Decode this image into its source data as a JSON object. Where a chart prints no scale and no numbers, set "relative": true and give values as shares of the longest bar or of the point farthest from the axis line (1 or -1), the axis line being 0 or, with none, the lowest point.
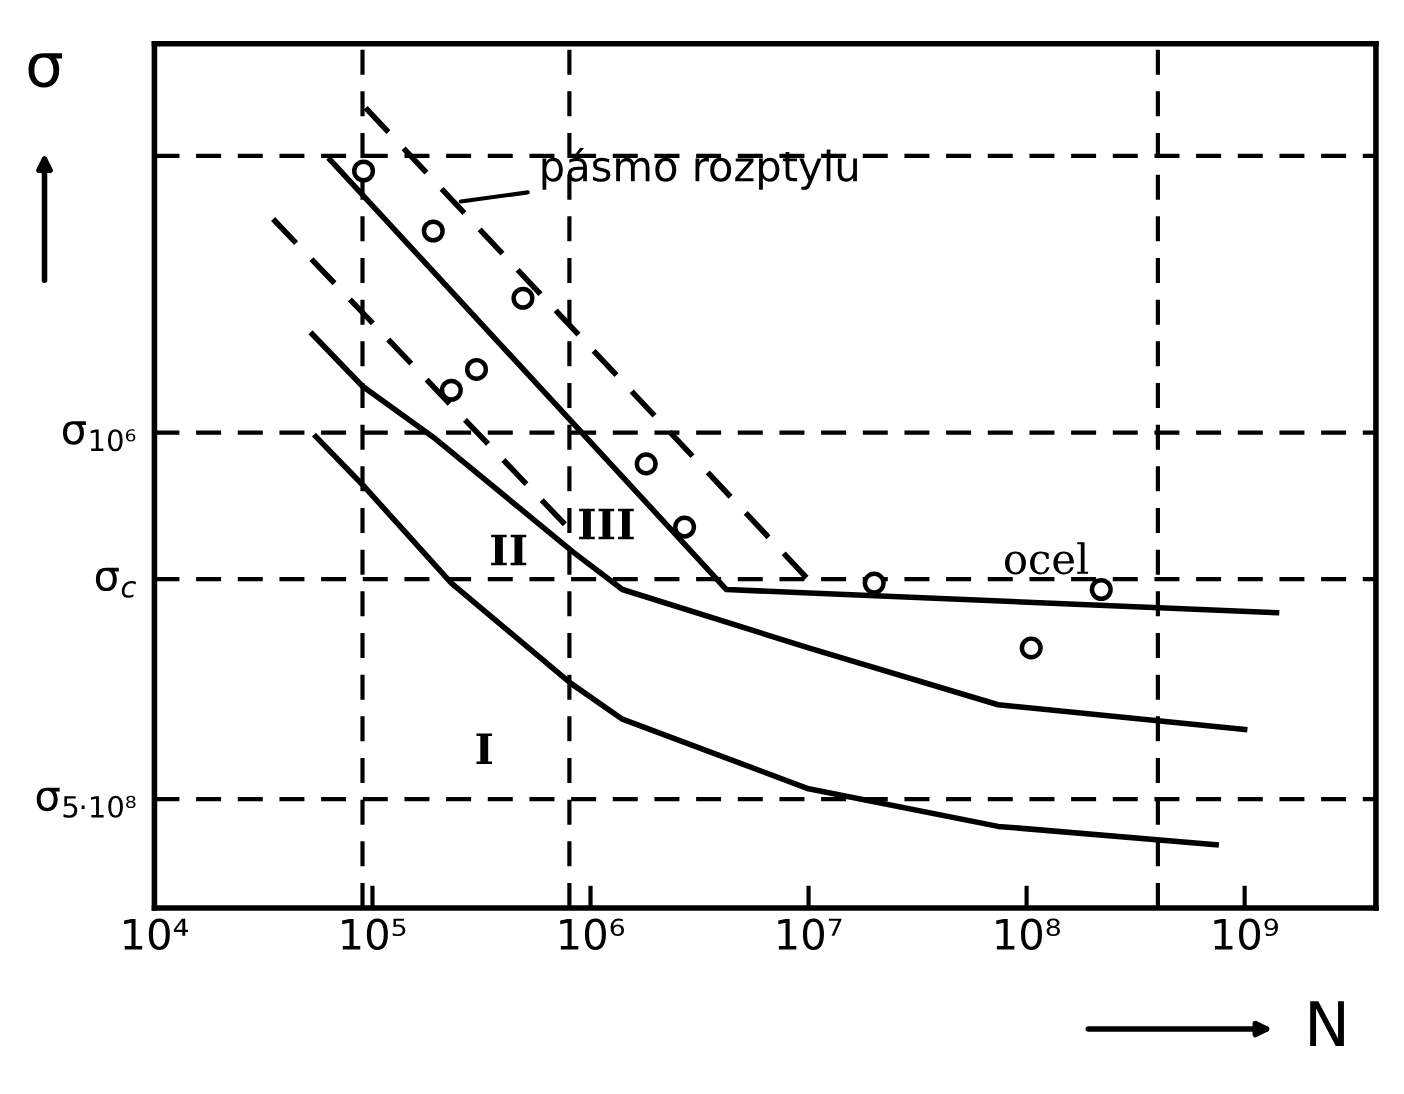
{
  "chart_data": {
    "type": "line",
    "relative": true,
    "xlabel": "N",
    "ylabel": "σ",
    "log": "x",
    "grid": false,
    "legend": false,
    "xlim": [
      10000,
      4000000000
    ],
    "xticks": [
      {
        "value": 10000,
        "label": "10⁴"
      },
      {
        "value": 100000,
        "label": "10⁵"
      },
      {
        "value": 1000000,
        "label": "10⁶"
      },
      {
        "value": 10000000,
        "label": "10⁷"
      },
      {
        "value": 100000000,
        "label": "10⁸"
      },
      {
        "value": 1000000000,
        "label": "10⁹"
      }
    ],
    "series": [
      {
        "color": "#000000",
        "line_style": "solid",
        "x": [
          55000,
          90000,
          230000,
          810000,
          1400000,
          10000000,
          74000000,
          740000000
        ],
        "values": [
          0.589,
          0.529,
          0.406,
          0.281,
          0.236,
          0.149,
          0.102,
          0.079
        ]
      },
      {
        "color": "#000000",
        "line_style": "solid",
        "x": [
          53000,
          90000,
          195000,
          830000,
          1400000,
          10000000,
          74000000,
          1000000000
        ],
        "values": [
          0.717,
          0.652,
          0.586,
          0.445,
          0.398,
          0.325,
          0.254,
          0.223
        ]
      },
      {
        "color": "#000000",
        "line_style": "solid",
        "x": [
          64000,
          4200000,
          1400000000
        ],
        "values": [
          0.935,
          0.398,
          0.369
        ]
      },
      {
        "color": "#000000",
        "line_style": "dashed",
        "x": [
          93000,
          11000000
        ],
        "values": [
          1.0,
          0.398
        ]
      },
      {
        "color": "#000000",
        "line_style": "dashed",
        "x": [
          35000,
          830000
        ],
        "values": [
          0.861,
          0.469
        ]
      },
      {
        "type": "scatter",
        "color": "#000000",
        "marker": "circle",
        "x": [
          91000,
          190000,
          490000,
          230000,
          300000,
          1800000,
          2700000,
          20000000,
          220000000,
          105000000
        ],
        "values": [
          0.921,
          0.846,
          0.762,
          0.647,
          0.673,
          0.555,
          0.476,
          0.406,
          0.398,
          0.325
        ]
      }
    ],
    "ref_lines": [
      {
        "axis": "y",
        "value": 0.94,
        "label": null,
        "color": "#000000",
        "line_style": "dashed"
      },
      {
        "axis": "y",
        "value": 0.594,
        "label": "σ$_{10⁶}$",
        "color": "#000000",
        "line_style": "dashed"
      },
      {
        "axis": "y",
        "value": 0.411,
        "label": "σ$_{c}$",
        "color": "#000000",
        "line_style": "dashed"
      },
      {
        "axis": "y",
        "value": 0.136,
        "label": "σ$_{5·10⁸}$",
        "color": "#000000",
        "line_style": "dashed"
      },
      {
        "axis": "x",
        "value": 90000,
        "label": null,
        "color": "#000000",
        "line_style": "dashed"
      },
      {
        "axis": "x",
        "value": 800000,
        "label": null,
        "color": "#000000",
        "line_style": "dashed"
      },
      {
        "axis": "x",
        "value": 400000000,
        "label": null,
        "color": "#000000",
        "line_style": "dashed"
      }
    ],
    "annotations": [
      {
        "text": "pásmo rozptylu",
        "x": 240000,
        "y": 0.882
      },
      "ocel",
      "I",
      "II",
      "III"
    ]
  }
}
